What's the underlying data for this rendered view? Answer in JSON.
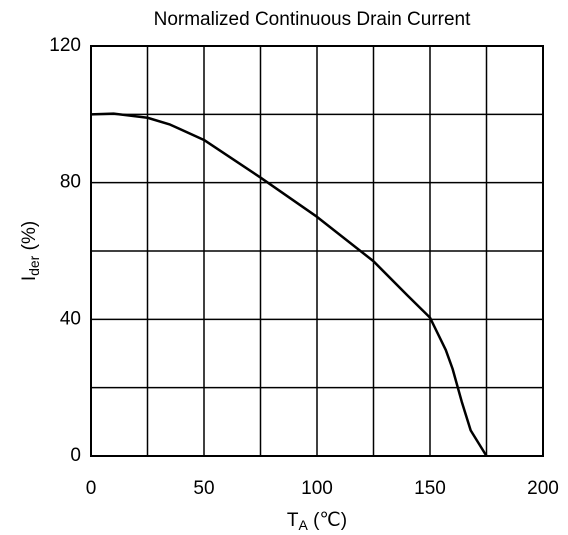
{
  "chart_data": {
    "type": "line",
    "title": "Normalized Continuous Drain Current",
    "xlabel": [
      "T",
      "A",
      " (℃)"
    ],
    "ylabel": [
      "I",
      "der",
      " (%)"
    ],
    "x": [
      0,
      10,
      25,
      35,
      50,
      75,
      100,
      125,
      140,
      150,
      157,
      160,
      164,
      168,
      175
    ],
    "series": [
      {
        "name": "Ider",
        "color": "#000000",
        "values": [
          100,
          100.2,
          99,
          97,
          92.5,
          81.5,
          70,
          57,
          47,
          40.5,
          31,
          25.5,
          16,
          7.5,
          0
        ]
      }
    ],
    "xlim": [
      0,
      200
    ],
    "xticks": [
      0,
      50,
      100,
      150,
      200
    ],
    "xminor": [
      25,
      75,
      125,
      175
    ],
    "ylim": [
      0,
      120
    ],
    "yticks": [
      0,
      40,
      80,
      120
    ],
    "yminor": [
      20,
      60,
      100
    ],
    "grid": true
  }
}
